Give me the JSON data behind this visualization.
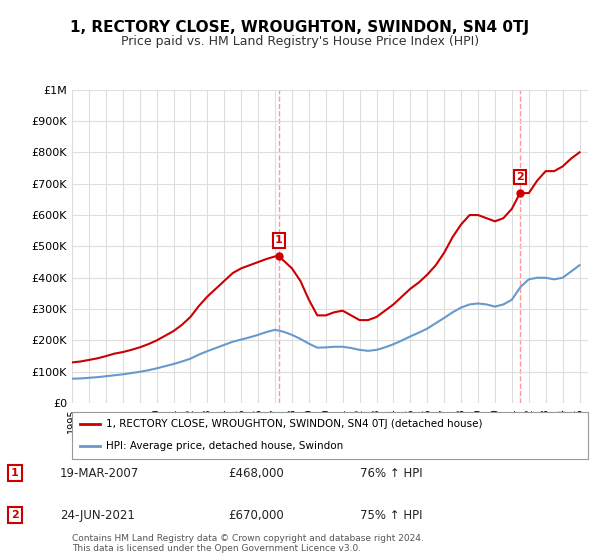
{
  "title": "1, RECTORY CLOSE, WROUGHTON, SWINDON, SN4 0TJ",
  "subtitle": "Price paid vs. HM Land Registry's House Price Index (HPI)",
  "red_line_label": "1, RECTORY CLOSE, WROUGHTON, SWINDON, SN4 0TJ (detached house)",
  "blue_line_label": "HPI: Average price, detached house, Swindon",
  "sale1_date": "19-MAR-2007",
  "sale1_price": 468000,
  "sale1_hpi": "76% ↑ HPI",
  "sale1_year": 2007.22,
  "sale2_date": "24-JUN-2021",
  "sale2_price": 670000,
  "sale2_hpi": "75% ↑ HPI",
  "sale2_year": 2021.48,
  "ylim_min": 0,
  "ylim_max": 1000000,
  "xlim_min": 1995,
  "xlim_max": 2025.5,
  "background_color": "#ffffff",
  "plot_bg_color": "#ffffff",
  "grid_color": "#dddddd",
  "red_color": "#cc0000",
  "blue_color": "#6699cc",
  "dashed_color": "#ff9999",
  "footer_text": "Contains HM Land Registry data © Crown copyright and database right 2024.\nThis data is licensed under the Open Government Licence v3.0.",
  "red_x": [
    1995.0,
    1995.5,
    1996.0,
    1996.5,
    1997.0,
    1997.5,
    1998.0,
    1998.5,
    1999.0,
    1999.5,
    2000.0,
    2000.5,
    2001.0,
    2001.5,
    2002.0,
    2002.5,
    2003.0,
    2003.5,
    2004.0,
    2004.5,
    2005.0,
    2005.5,
    2006.0,
    2006.5,
    2007.0,
    2007.22,
    2007.5,
    2008.0,
    2008.5,
    2009.0,
    2009.5,
    2010.0,
    2010.5,
    2011.0,
    2011.5,
    2012.0,
    2012.5,
    2013.0,
    2013.5,
    2014.0,
    2014.5,
    2015.0,
    2015.5,
    2016.0,
    2016.5,
    2017.0,
    2017.5,
    2018.0,
    2018.5,
    2019.0,
    2019.5,
    2020.0,
    2020.5,
    2021.0,
    2021.48,
    2022.0,
    2022.5,
    2023.0,
    2023.5,
    2024.0,
    2024.5,
    2025.0
  ],
  "red_y": [
    130000,
    133000,
    138000,
    143000,
    150000,
    158000,
    163000,
    170000,
    178000,
    188000,
    200000,
    215000,
    230000,
    250000,
    275000,
    310000,
    340000,
    365000,
    390000,
    415000,
    430000,
    440000,
    450000,
    460000,
    468000,
    468000,
    455000,
    430000,
    390000,
    330000,
    280000,
    280000,
    290000,
    295000,
    280000,
    265000,
    265000,
    275000,
    295000,
    315000,
    340000,
    365000,
    385000,
    410000,
    440000,
    480000,
    530000,
    570000,
    600000,
    600000,
    590000,
    580000,
    590000,
    620000,
    670000,
    670000,
    710000,
    740000,
    740000,
    755000,
    780000,
    800000
  ],
  "blue_x": [
    1995.0,
    1995.5,
    1996.0,
    1996.5,
    1997.0,
    1997.5,
    1998.0,
    1998.5,
    1999.0,
    1999.5,
    2000.0,
    2000.5,
    2001.0,
    2001.5,
    2002.0,
    2002.5,
    2003.0,
    2003.5,
    2004.0,
    2004.5,
    2005.0,
    2005.5,
    2006.0,
    2006.5,
    2007.0,
    2007.5,
    2008.0,
    2008.5,
    2009.0,
    2009.5,
    2010.0,
    2010.5,
    2011.0,
    2011.5,
    2012.0,
    2012.5,
    2013.0,
    2013.5,
    2014.0,
    2014.5,
    2015.0,
    2015.5,
    2016.0,
    2016.5,
    2017.0,
    2017.5,
    2018.0,
    2018.5,
    2019.0,
    2019.5,
    2020.0,
    2020.5,
    2021.0,
    2021.5,
    2022.0,
    2022.5,
    2023.0,
    2023.5,
    2024.0,
    2024.5,
    2025.0
  ],
  "blue_y": [
    78000,
    79000,
    81000,
    83000,
    86000,
    89000,
    92000,
    96000,
    100000,
    105000,
    111000,
    118000,
    125000,
    133000,
    142000,
    155000,
    166000,
    176000,
    186000,
    196000,
    203000,
    210000,
    218000,
    227000,
    234000,
    228000,
    218000,
    205000,
    190000,
    177000,
    178000,
    180000,
    180000,
    176000,
    170000,
    167000,
    170000,
    178000,
    188000,
    200000,
    213000,
    225000,
    238000,
    255000,
    272000,
    290000,
    305000,
    315000,
    318000,
    315000,
    308000,
    315000,
    330000,
    370000,
    395000,
    400000,
    400000,
    395000,
    400000,
    420000,
    440000
  ]
}
